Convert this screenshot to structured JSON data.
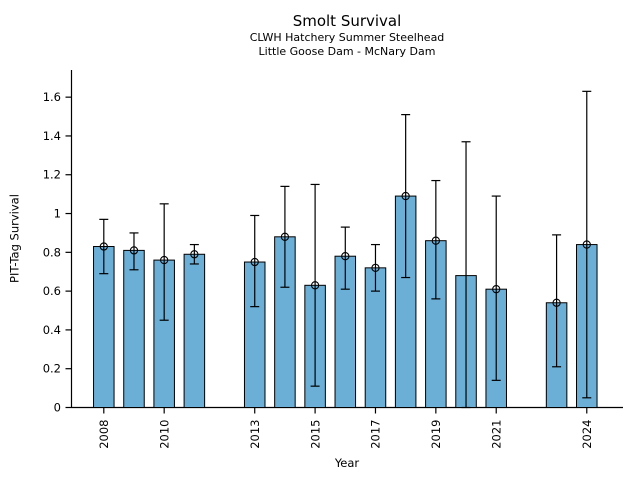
{
  "header": {
    "title": "Smolt Survival",
    "subtitle_line1": "CLWH Hatchery Summer Steelhead",
    "subtitle_line2": "Little Goose Dam - McNary Dam"
  },
  "axes": {
    "xlabel": "Year",
    "ylabel": "PIT-Tag Survival"
  },
  "chart_data": {
    "type": "bar",
    "title": "Smolt Survival",
    "subtitle": [
      "CLWH Hatchery Summer Steelhead",
      "Little Goose Dam - McNary Dam"
    ],
    "xlabel": "Year",
    "ylabel": "PIT-Tag Survival",
    "ylim": [
      0,
      1.74
    ],
    "yticks": [
      0,
      0.2,
      0.4,
      0.6,
      0.8,
      1,
      1.2,
      1.4,
      1.6
    ],
    "ytick_labels": [
      "0",
      "0.2",
      "0.4",
      "0.6",
      "0.8",
      "1",
      "1.2",
      "1.4",
      "1.6"
    ],
    "xlim": [
      2006.93,
      2025.2
    ],
    "xtick_years": [
      2008,
      2010,
      2013,
      2015,
      2017,
      2019,
      2021,
      2024
    ],
    "missing_years": [
      2012,
      2022
    ],
    "grid": false,
    "legend": null,
    "bar_width_years": 0.68,
    "marker_style": "open-circle",
    "colors": {
      "bar_fill": "#6BAED6",
      "bar_edge": "#000000",
      "error_bar": "#000000",
      "text": "#000000",
      "background": "#ffffff"
    },
    "series": [
      {
        "name": "PIT-Tag Survival",
        "points": [
          {
            "year": 2008,
            "value": 0.83,
            "err_lo": 0.69,
            "err_hi": 0.97,
            "marker": true
          },
          {
            "year": 2009,
            "value": 0.81,
            "err_lo": 0.71,
            "err_hi": 0.9,
            "marker": true
          },
          {
            "year": 2010,
            "value": 0.76,
            "err_lo": 0.45,
            "err_hi": 1.05,
            "marker": true
          },
          {
            "year": 2011,
            "value": 0.79,
            "err_lo": 0.74,
            "err_hi": 0.84,
            "marker": true
          },
          {
            "year": 2013,
            "value": 0.75,
            "err_lo": 0.52,
            "err_hi": 0.99,
            "marker": true
          },
          {
            "year": 2014,
            "value": 0.88,
            "err_lo": 0.62,
            "err_hi": 1.14,
            "marker": true
          },
          {
            "year": 2015,
            "value": 0.63,
            "err_lo": 0.11,
            "err_hi": 1.15,
            "marker": true
          },
          {
            "year": 2016,
            "value": 0.78,
            "err_lo": 0.61,
            "err_hi": 0.93,
            "marker": true
          },
          {
            "year": 2017,
            "value": 0.72,
            "err_lo": 0.6,
            "err_hi": 0.84,
            "marker": true
          },
          {
            "year": 2018,
            "value": 1.09,
            "err_lo": 0.67,
            "err_hi": 1.51,
            "marker": true
          },
          {
            "year": 2019,
            "value": 0.86,
            "err_lo": 0.56,
            "err_hi": 1.17,
            "marker": true
          },
          {
            "year": 2020,
            "value": 0.68,
            "err_lo": 0.0,
            "err_hi": 1.37,
            "marker": false
          },
          {
            "year": 2021,
            "value": 0.61,
            "err_lo": 0.14,
            "err_hi": 1.09,
            "marker": true
          },
          {
            "year": 2023,
            "value": 0.54,
            "err_lo": 0.21,
            "err_hi": 0.89,
            "marker": true
          },
          {
            "year": 2024,
            "value": 0.84,
            "err_lo": 0.05,
            "err_hi": 1.63,
            "marker": true
          }
        ]
      }
    ]
  }
}
